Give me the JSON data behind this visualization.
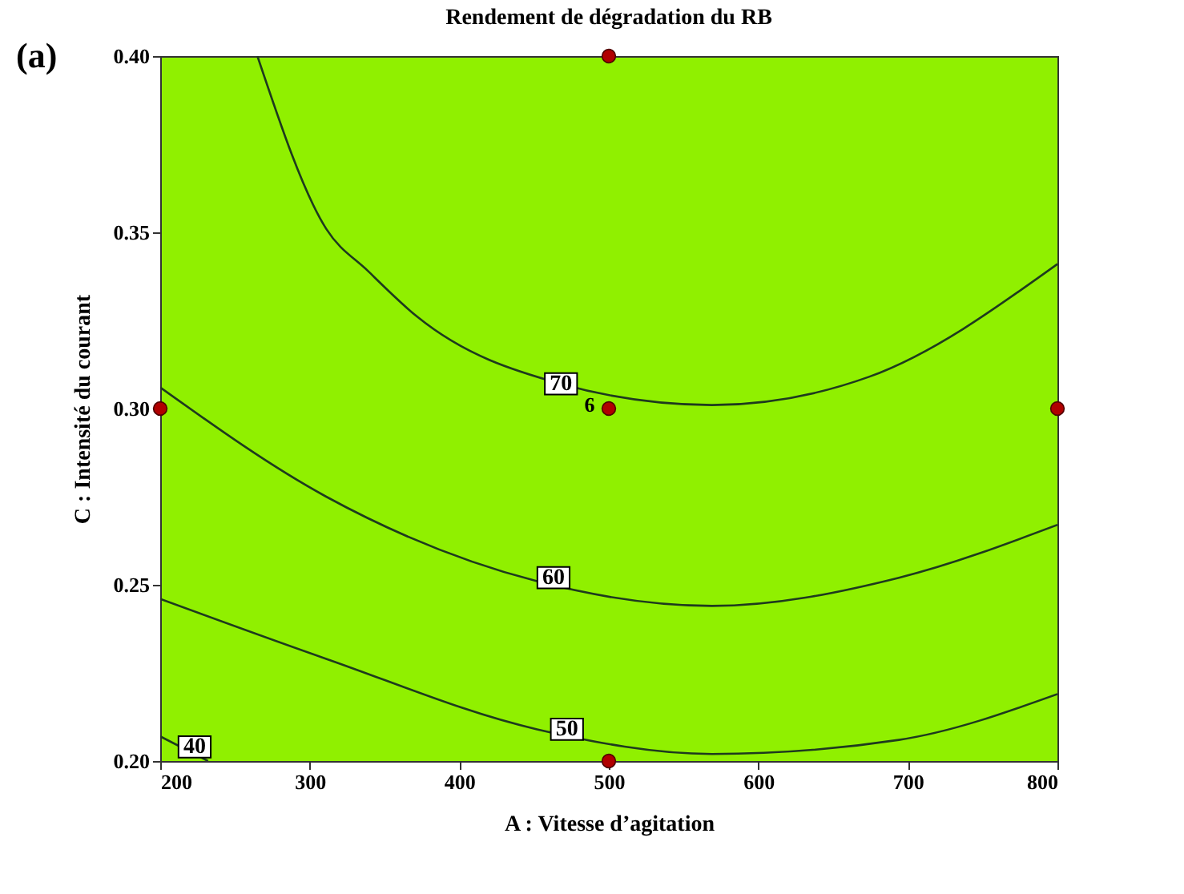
{
  "chart_data": {
    "type": "line",
    "title": "Rendement de dégradation du RB",
    "xlabel": "A : Vitesse d’agitation",
    "ylabel": "C : Intensité du courant",
    "xlim": [
      200,
      800
    ],
    "xticks": [
      200,
      300,
      400,
      500,
      600,
      700,
      800
    ],
    "ylim": [
      0.2,
      0.4
    ],
    "yticks": [
      {
        "value": 0.2,
        "label": "0.20"
      },
      {
        "value": 0.25,
        "label": "0.25"
      },
      {
        "value": 0.3,
        "label": "0.30"
      },
      {
        "value": 0.35,
        "label": "0.35"
      },
      {
        "value": 0.4,
        "label": "0.40"
      }
    ],
    "grid": false,
    "line_style": "solid",
    "series": [
      {
        "color": "#1e3a1e",
        "x": [
          265,
          311,
          339,
          372,
          468,
          569,
          674,
          800
        ],
        "values": [
          0.4,
          0.351,
          0.339,
          0.326,
          0.307,
          0.301,
          0.309,
          0.341
        ]
      },
      {
        "color": "#1e3a1e",
        "x": [
          200,
          311,
          452,
          569,
          694,
          800
        ],
        "values": [
          0.306,
          0.275,
          0.251,
          0.244,
          0.252,
          0.267
        ]
      },
      {
        "color": "#1e3a1e",
        "x": [
          200,
          311,
          452,
          569,
          694,
          800
        ],
        "values": [
          0.246,
          0.229,
          0.209,
          0.202,
          0.206,
          0.219
        ]
      },
      {
        "color": "#1e3a1e",
        "x": [
          200,
          232
        ],
        "values": [
          0.207,
          0.2
        ]
      },
      {
        "type": "scatter",
        "color": "#b00000",
        "marker": "circle",
        "x": [
          200,
          500,
          800,
          500,
          500
        ],
        "values": [
          0.3,
          0.3,
          0.3,
          0.4,
          0.2
        ]
      }
    ],
    "annotations": [
      {
        "text": "70",
        "x": 468,
        "y": 0.307
      },
      {
        "text": "60",
        "x": 463,
        "y": 0.252
      },
      {
        "text": "50",
        "x": 472,
        "y": 0.209
      },
      {
        "text": "40",
        "x": 223,
        "y": 0.204
      },
      {
        "text": "6",
        "x": 500,
        "y": 0.3
      },
      "(a)"
    ]
  }
}
